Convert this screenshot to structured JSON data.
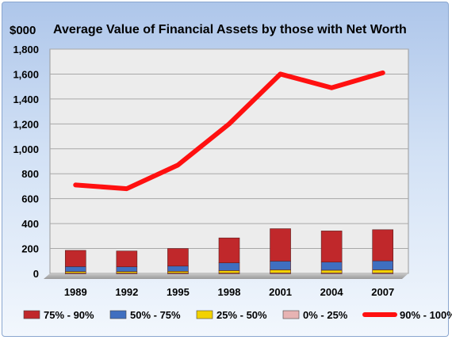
{
  "chart_data": {
    "type": "bar",
    "title": "Average Value of Financial Assets by those with Net Worth",
    "unit_label": "$000",
    "categories": [
      "1989",
      "1992",
      "1995",
      "1998",
      "2001",
      "2004",
      "2007"
    ],
    "ylim": [
      0,
      1800
    ],
    "yticks": [
      0,
      200,
      400,
      600,
      800,
      1000,
      1200,
      1400,
      1600,
      1800
    ],
    "ytick_labels": [
      "0",
      "200",
      "400",
      "600",
      "800",
      "1,000",
      "1,200",
      "1,400",
      "1,600",
      "1,800"
    ],
    "grid": true,
    "legend_position": "bottom",
    "stacked_series": [
      {
        "name": "0% - 25%",
        "color": "#e7b3b3",
        "values": [
          3,
          3,
          3,
          3,
          4,
          4,
          4
        ]
      },
      {
        "name": "25% - 50%",
        "color": "#f2d200",
        "values": [
          12,
          12,
          14,
          20,
          25,
          22,
          25
        ]
      },
      {
        "name": "50% - 75%",
        "color": "#3f6fc0",
        "values": [
          40,
          38,
          42,
          62,
          70,
          65,
          72
        ]
      },
      {
        "name": "75% - 90%",
        "color": "#c0282b",
        "values": [
          130,
          127,
          141,
          200,
          260,
          250,
          250
        ]
      }
    ],
    "line_series": {
      "name": "90% - 100%",
      "color": "#ff1010",
      "values": [
        710,
        680,
        870,
        1200,
        1600,
        1490,
        1610
      ]
    },
    "legend_order": [
      "75% - 90%",
      "50% - 75%",
      "25% - 50%",
      "0% - 25%",
      "90% - 100%"
    ]
  }
}
